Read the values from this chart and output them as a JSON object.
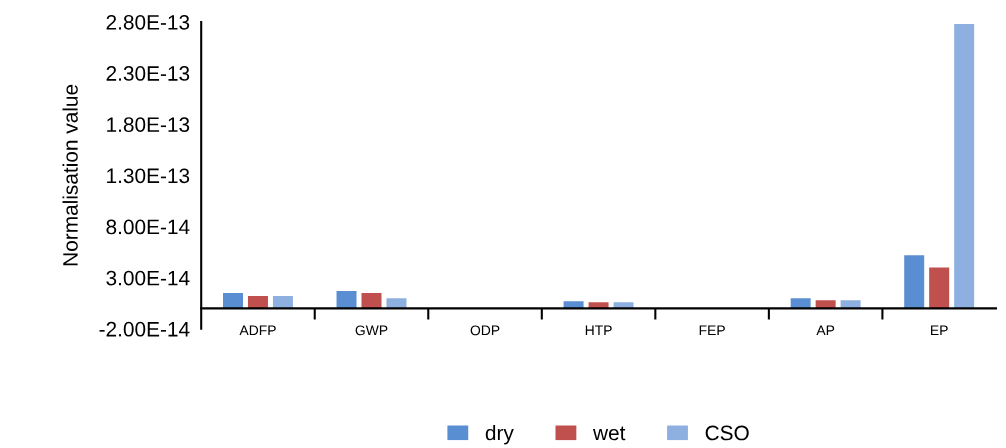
{
  "chart_data": {
    "type": "bar",
    "ylabel": "Normalisation value",
    "categories": [
      "ADFP",
      "GWP",
      "ODP",
      "HTP",
      "FEP",
      "AP",
      "EP"
    ],
    "series": [
      {
        "name": "dry",
        "color": "#5a8ed2",
        "values": [
          1.5e-14,
          1.7e-14,
          0,
          7e-15,
          0,
          1e-14,
          5.2e-14
        ]
      },
      {
        "name": "wet",
        "color": "#c0504d",
        "values": [
          1.2e-14,
          1.5e-14,
          0,
          6e-15,
          0,
          8e-15,
          4e-14
        ]
      },
      {
        "name": "CSO",
        "color": "#8db0e0",
        "values": [
          1.2e-14,
          1e-14,
          0,
          6e-15,
          0,
          8e-15,
          2.78e-13
        ]
      }
    ],
    "ylim": [
      -2e-14,
      2.8e-13
    ],
    "yticks": [
      {
        "value": -2e-14,
        "label": "-2.00E-14"
      },
      {
        "value": 3e-14,
        "label": "3.00E-14"
      },
      {
        "value": 8e-14,
        "label": "8.00E-14"
      },
      {
        "value": 1.3e-13,
        "label": "1.30E-13"
      },
      {
        "value": 1.8e-13,
        "label": "1.80E-13"
      },
      {
        "value": 2.3e-13,
        "label": "2.30E-13"
      },
      {
        "value": 2.8e-13,
        "label": "2.80E-13"
      }
    ],
    "grid": false,
    "legend": "bottom"
  }
}
